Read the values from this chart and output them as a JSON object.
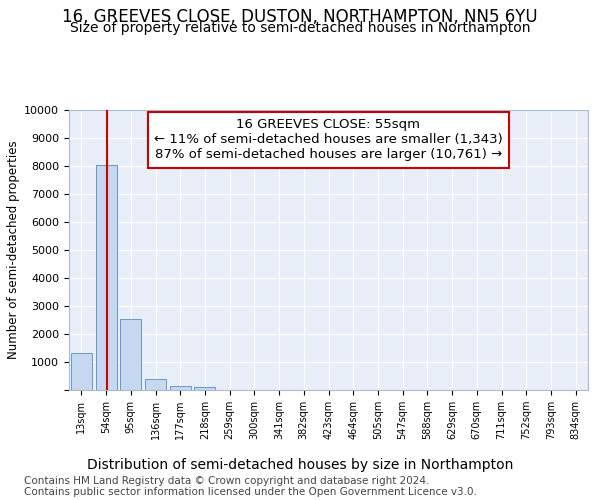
{
  "title1": "16, GREEVES CLOSE, DUSTON, NORTHAMPTON, NN5 6YU",
  "title2": "Size of property relative to semi-detached houses in Northampton",
  "xlabel": "Distribution of semi-detached houses by size in Northampton",
  "ylabel": "Number of semi-detached properties",
  "footer1": "Contains HM Land Registry data © Crown copyright and database right 2024.",
  "footer2": "Contains public sector information licensed under the Open Government Licence v3.0.",
  "bar_labels": [
    "13sqm",
    "54sqm",
    "95sqm",
    "136sqm",
    "177sqm",
    "218sqm",
    "259sqm",
    "300sqm",
    "341sqm",
    "382sqm",
    "423sqm",
    "464sqm",
    "505sqm",
    "547sqm",
    "588sqm",
    "629sqm",
    "670sqm",
    "711sqm",
    "752sqm",
    "793sqm",
    "834sqm"
  ],
  "bar_values": [
    1320,
    8020,
    2530,
    390,
    150,
    100,
    0,
    0,
    0,
    0,
    0,
    0,
    0,
    0,
    0,
    0,
    0,
    0,
    0,
    0,
    0
  ],
  "bar_color": "#c5d8f0",
  "bar_edge_color": "#6699cc",
  "annotation_line1": "16 GREEVES CLOSE: 55sqm",
  "annotation_line2": "← 11% of semi-detached houses are smaller (1,343)",
  "annotation_line3": "87% of semi-detached houses are larger (10,761) →",
  "ylim": [
    0,
    10000
  ],
  "yticks": [
    0,
    1000,
    2000,
    3000,
    4000,
    5000,
    6000,
    7000,
    8000,
    9000,
    10000
  ],
  "background_color": "#ffffff",
  "plot_bg_color": "#e8eef8",
  "grid_color": "#ffffff",
  "title1_fontsize": 12,
  "title2_fontsize": 10,
  "annotation_fontsize": 9.5,
  "ylabel_fontsize": 8.5,
  "xlabel_fontsize": 10,
  "footer_fontsize": 7.5,
  "tick_fontsize": 8
}
